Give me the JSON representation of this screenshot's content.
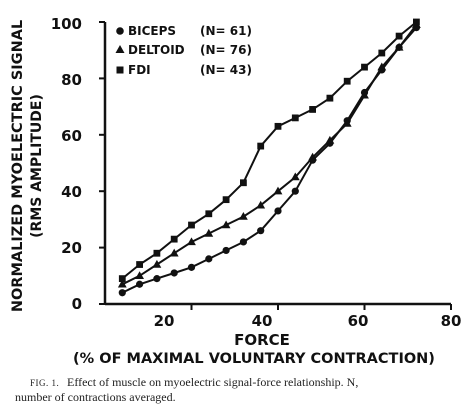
{
  "chart_data": {
    "type": "line",
    "xlabel_line1": "FORCE",
    "xlabel_line2": "(% OF MAXIMAL VOLUNTARY CONTRACTION)",
    "ylabel_line1": "NORMALIZED MYOELECTRIC SIGNAL",
    "ylabel_line2": "(RMS AMPLITUDE)",
    "xlim": [
      0,
      80
    ],
    "ylim": [
      0,
      100
    ],
    "xticks": [
      "20",
      "40",
      "60",
      "80"
    ],
    "yticks": [
      "0",
      "20",
      "40",
      "60",
      "80",
      "100"
    ],
    "grid": false,
    "legend_position": "top-left",
    "series": [
      {
        "name": "BICEPS",
        "n_label": "(N= 61)",
        "marker": "circle",
        "x": [
          4,
          8,
          12,
          16,
          20,
          24,
          28,
          32,
          36,
          40,
          44,
          48,
          52,
          56,
          60,
          64,
          68,
          72
        ],
        "y": [
          4,
          7,
          9,
          11,
          13,
          16,
          19,
          22,
          26,
          33,
          40,
          51,
          57,
          65,
          75,
          83,
          91,
          98
        ]
      },
      {
        "name": "DELTOID",
        "n_label": "(N= 76)",
        "marker": "triangle",
        "x": [
          4,
          8,
          12,
          16,
          20,
          24,
          28,
          32,
          36,
          40,
          44,
          48,
          52,
          56,
          60,
          64,
          68,
          72
        ],
        "y": [
          7,
          10,
          14,
          18,
          22,
          25,
          28,
          31,
          35,
          40,
          45,
          52,
          58,
          64,
          74,
          84,
          91,
          99
        ]
      },
      {
        "name": "FDI",
        "n_label": "(N= 43)",
        "marker": "square",
        "x": [
          4,
          8,
          12,
          16,
          20,
          24,
          28,
          32,
          36,
          40,
          44,
          48,
          52,
          56,
          60,
          64,
          68,
          72
        ],
        "y": [
          9,
          14,
          18,
          23,
          28,
          32,
          37,
          43,
          56,
          63,
          66,
          69,
          73,
          79,
          84,
          89,
          95,
          100
        ]
      }
    ]
  },
  "caption": {
    "fig_label": "FIG. 1.",
    "line1": "Effect of muscle on myoelectric signal-force relationship. N,",
    "line2": "number of contractions averaged."
  },
  "colors": {
    "ink": "#111111",
    "background": "#ffffff"
  }
}
